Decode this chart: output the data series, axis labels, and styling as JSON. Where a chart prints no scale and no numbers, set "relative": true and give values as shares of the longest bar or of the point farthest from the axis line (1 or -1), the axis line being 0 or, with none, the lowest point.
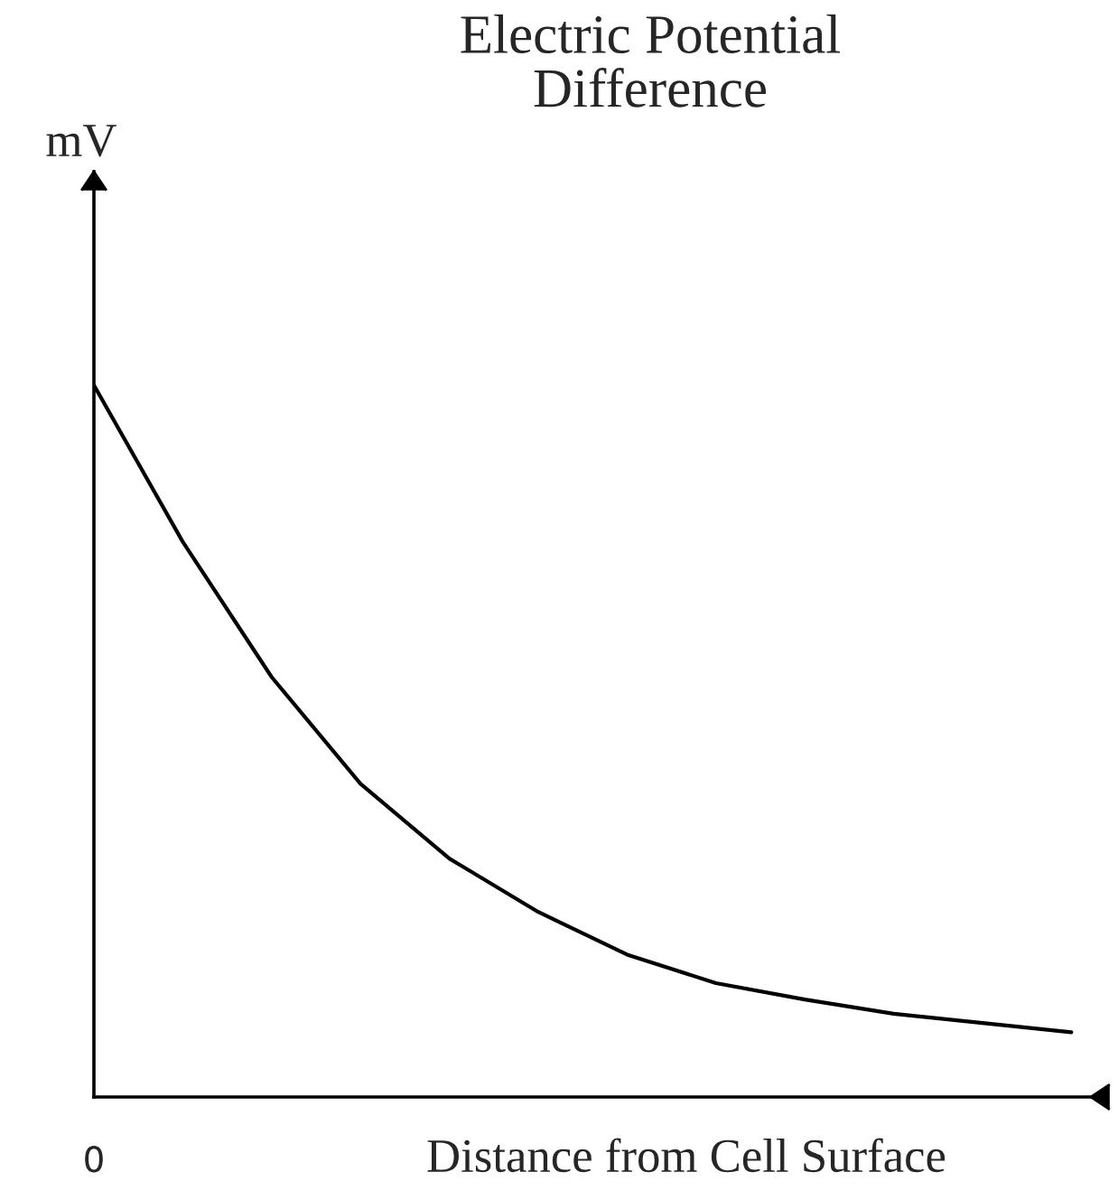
{
  "chart_data": {
    "type": "line",
    "title": "Electric Potential\nDifference",
    "xlabel": "Distance from Cell Surface",
    "ylabel": "mV",
    "relative": true,
    "annotations": [
      "0"
    ],
    "marker": "none",
    "line_style": "solid",
    "categories": [
      null,
      null,
      null,
      null,
      null,
      null,
      null,
      null,
      null,
      null,
      null,
      null
    ],
    "series": [
      {
        "color": "#000000",
        "values": [
          1.0,
          0.78,
          0.59,
          0.44,
          0.335,
          0.26,
          0.2,
          0.16,
          0.137,
          0.117,
          0.104,
          0.091
        ]
      }
    ]
  }
}
